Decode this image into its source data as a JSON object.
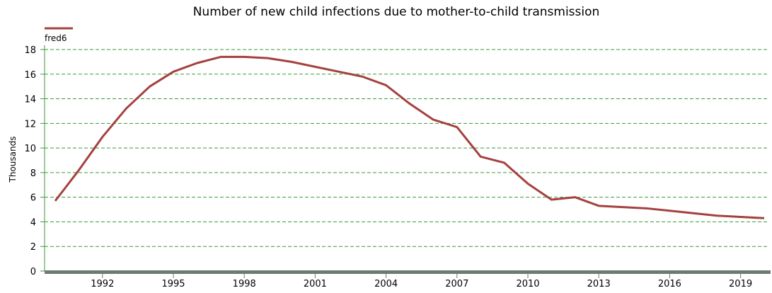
{
  "chart_data": {
    "type": "line",
    "title": "Number of new child infections due to mother-to-child transmission",
    "y_label": "Thousands",
    "x": [
      1990,
      1991,
      1992,
      1993,
      1994,
      1995,
      1996,
      1997,
      1998,
      1999,
      2000,
      2001,
      2002,
      2003,
      2004,
      2005,
      2006,
      2007,
      2008,
      2009,
      2010,
      2011,
      2012,
      2013,
      2014,
      2015,
      2016,
      2017,
      2018,
      2019,
      2020
    ],
    "series": [
      {
        "name": "fred6",
        "color": "#a5413f",
        "values": [
          5.7,
          8.2,
          10.9,
          13.2,
          15.0,
          16.2,
          16.9,
          17.4,
          17.4,
          17.3,
          17.0,
          16.6,
          16.2,
          15.8,
          15.1,
          13.6,
          12.3,
          11.7,
          9.3,
          8.8,
          7.1,
          5.8,
          6.0,
          5.3,
          5.2,
          5.1,
          4.9,
          4.7,
          4.5,
          4.4,
          4.3
        ]
      }
    ],
    "xlim": [
      1989.55,
      2020.15
    ],
    "xticks": [
      1992,
      1995,
      1998,
      2001,
      2004,
      2007,
      2010,
      2013,
      2016,
      2019
    ],
    "ylim": [
      0,
      18
    ],
    "yticks": [
      0,
      2,
      4,
      6,
      8,
      10,
      12,
      14,
      16,
      18
    ],
    "grid": true,
    "grid_color": "#3a9a3a",
    "legend": "top-left"
  }
}
